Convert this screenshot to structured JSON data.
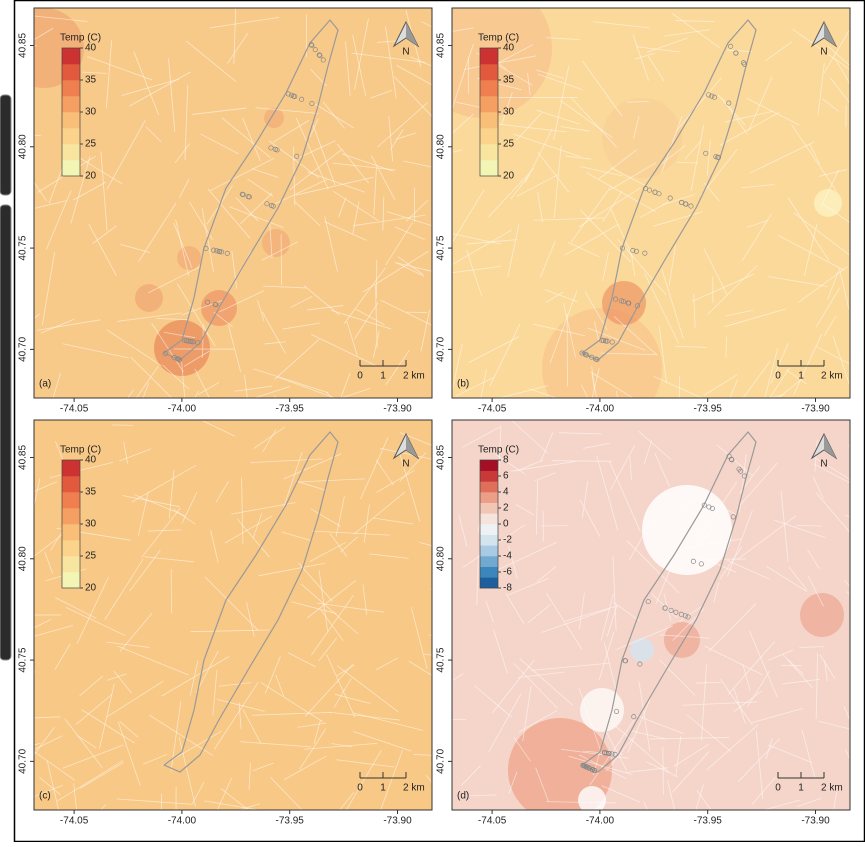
{
  "map": {
    "xlim": [
      -74.0686,
      -73.884
    ],
    "ylim": [
      40.676,
      40.8685
    ],
    "xticks": [
      -74.05,
      {
        "value": -74.0,
        "label": "-74.00"
      },
      -73.95,
      {
        "value": -73.9,
        "label": "-73.90"
      }
    ],
    "yticks": [
      40.85,
      {
        "value": 40.8,
        "label": "40.80"
      },
      40.75,
      {
        "value": 40.7,
        "label": "40.70"
      }
    ]
  },
  "panels": [
    {
      "label": "(a)",
      "legend": {
        "title": "Temp (C)",
        "ticks": [
          20,
          25,
          30,
          35,
          40
        ],
        "colors": [
          "#f2f5b4",
          "#f8e6a0",
          "#fbd38a",
          "#f9be77",
          "#f5a062",
          "#ef7f4f",
          "#e25a3e",
          "#cc3231"
        ]
      },
      "scale_labels": [
        "0",
        "1",
        "2 km"
      ],
      "north": "N",
      "background": "#f8ca8a"
    },
    {
      "label": "(b)",
      "legend": {
        "title": "Temp (C)",
        "ticks": [
          20,
          25,
          30,
          35,
          40
        ],
        "colors": [
          "#f2f5b4",
          "#f8e6a0",
          "#fbd38a",
          "#f9be77",
          "#f5a062",
          "#ef7f4f",
          "#e25a3e",
          "#cc3231"
        ]
      },
      "scale_labels": [
        "0",
        "1",
        "2 km"
      ],
      "north": "N",
      "background": "#fbd99a"
    },
    {
      "label": "(c)",
      "legend": {
        "title": "Temp (C)",
        "ticks": [
          20,
          25,
          30,
          35,
          40
        ],
        "colors": [
          "#f2f5b4",
          "#f8e6a0",
          "#fbd38a",
          "#f9be77",
          "#f5a062",
          "#ef7f4f",
          "#e25a3e",
          "#cc3231"
        ]
      },
      "scale_labels": [
        "0",
        "1",
        "2 km"
      ],
      "north": "N",
      "background": "#f8c886"
    },
    {
      "label": "(d)",
      "legend": {
        "title": "Temp (C)",
        "ticks": [
          8,
          6,
          4,
          2,
          0,
          -2,
          -4,
          -6,
          -8
        ],
        "colors": [
          "#1d5f9c",
          "#3b86bb",
          "#72a9d0",
          "#a8cae2",
          "#d4e4ef",
          "#eef2f5",
          "#f6e3dc",
          "#f1c6b5",
          "#ec9f88",
          "#de6f5a",
          "#c9393a",
          "#a50f26"
        ]
      },
      "scale_labels": [
        "0",
        "1",
        "2 km"
      ],
      "north": "N",
      "background": "#f5d5ca"
    }
  ]
}
